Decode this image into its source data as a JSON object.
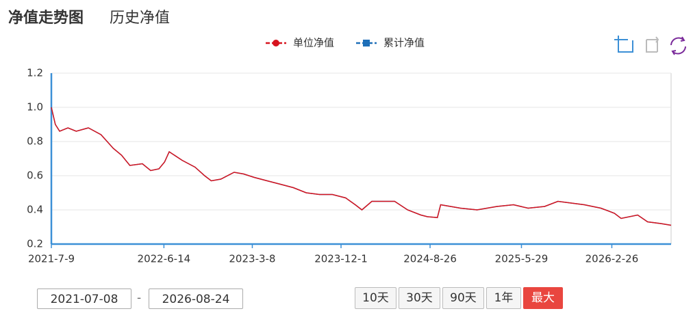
{
  "tabs": [
    "净值走势图",
    "历史净值"
  ],
  "chart_data": {
    "type": "line",
    "x": [
      "2021-7-9",
      "2021-7-21",
      "2021-8-3",
      "2021-8-28",
      "2021-9-22",
      "2021-10-29",
      "2021-12-6",
      "2022-1-12",
      "2022-2-6",
      "2022-3-3",
      "2022-4-10",
      "2022-5-5",
      "2022-5-30",
      "2022-6-16",
      "2022-6-30",
      "2022-8-8",
      "2022-9-16",
      "2022-10-15",
      "2022-11-4",
      "2022-12-3",
      "2023-1-12",
      "2023-2-10",
      "2023-3-14",
      "2023-4-22",
      "2023-6-1",
      "2023-7-10",
      "2023-8-18",
      "2023-9-27",
      "2023-11-5",
      "2023-12-15",
      "2024-1-13",
      "2024-2-2",
      "2024-3-3",
      "2024-4-11",
      "2024-5-11",
      "2024-6-19",
      "2024-7-29",
      "2024-8-18",
      "2024-9-17",
      "2024-9-27",
      "2024-10-27",
      "2024-11-26",
      "2025-1-15",
      "2025-3-16",
      "2025-5-5",
      "2025-6-18",
      "2025-8-7",
      "2025-9-16",
      "2025-10-26",
      "2025-12-5",
      "2026-1-24",
      "2026-3-6",
      "2026-3-26",
      "2026-5-15",
      "2026-6-14",
      "2026-7-24",
      "2026-8-24"
    ],
    "series": [
      {
        "name": "单位净值",
        "color": "#d7141e",
        "values": [
          1.0,
          0.9,
          0.86,
          0.88,
          0.86,
          0.88,
          0.84,
          0.76,
          0.72,
          0.66,
          0.67,
          0.63,
          0.64,
          0.68,
          0.74,
          0.69,
          0.65,
          0.6,
          0.57,
          0.58,
          0.62,
          0.61,
          0.59,
          0.57,
          0.55,
          0.53,
          0.5,
          0.49,
          0.49,
          0.47,
          0.43,
          0.4,
          0.45,
          0.45,
          0.45,
          0.4,
          0.37,
          0.36,
          0.355,
          0.43,
          0.42,
          0.41,
          0.4,
          0.42,
          0.43,
          0.41,
          0.42,
          0.45,
          0.44,
          0.43,
          0.41,
          0.38,
          0.35,
          0.37,
          0.33,
          0.32,
          0.31
        ]
      },
      {
        "name": "累计净值",
        "color": "#1e6fb8",
        "values": [
          1.0,
          0.9,
          0.86,
          0.88,
          0.86,
          0.88,
          0.84,
          0.76,
          0.72,
          0.66,
          0.67,
          0.63,
          0.64,
          0.68,
          0.74,
          0.69,
          0.65,
          0.6,
          0.57,
          0.58,
          0.62,
          0.61,
          0.59,
          0.57,
          0.55,
          0.53,
          0.5,
          0.49,
          0.49,
          0.47,
          0.43,
          0.4,
          0.45,
          0.45,
          0.45,
          0.4,
          0.37,
          0.36,
          0.355,
          0.43,
          0.42,
          0.41,
          0.4,
          0.42,
          0.43,
          0.41,
          0.42,
          0.45,
          0.44,
          0.43,
          0.41,
          0.38,
          0.35,
          0.37,
          0.33,
          0.32,
          0.31
        ]
      }
    ],
    "xlim": [
      "2021-7-9",
      "2026-8-24"
    ],
    "xticks": [
      "2021-7-9",
      "2022-6-14",
      "2023-3-8",
      "2023-12-1",
      "2024-8-26",
      "2025-5-29",
      "2026-2-26"
    ],
    "ylim": [
      0.2,
      1.2
    ],
    "yticks": [
      0.2,
      0.4,
      0.6,
      0.8,
      {
        "value": 1,
        "label": "1.0"
      },
      1.2
    ],
    "grid": true
  },
  "date_range": {
    "start": "2021-07-08",
    "separator": "-",
    "end": "2026-08-24"
  },
  "range_buttons": [
    "10天",
    "30天",
    "90天",
    "1年",
    "最大"
  ],
  "active_button": 4
}
